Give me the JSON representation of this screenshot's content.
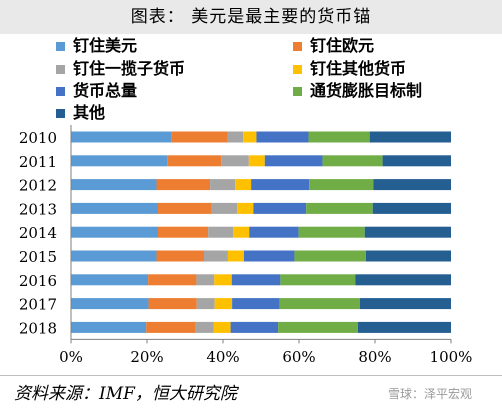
{
  "header": {
    "title": "图表：  美元是最主要的货币锚"
  },
  "footer": {
    "source": "资料来源：IMF，恒大研究院",
    "watermark": "雪球：泽平宏观"
  },
  "chart_data": {
    "type": "bar",
    "orientation": "horizontal",
    "stacked": "percent",
    "categories": [
      "2010",
      "2011",
      "2012",
      "2013",
      "2014",
      "2015",
      "2016",
      "2017",
      "2018"
    ],
    "series": [
      {
        "name": "钉住美元",
        "color": "#5b9bd5",
        "values": [
          26.5,
          25.3,
          22.5,
          22.9,
          22.9,
          22.5,
          20.3,
          20.4,
          19.8
        ]
      },
      {
        "name": "钉住欧元",
        "color": "#ed7d31",
        "values": [
          14.7,
          14.2,
          14.1,
          14.1,
          13.2,
          12.5,
          12.7,
          12.7,
          13.0
        ]
      },
      {
        "name": "钉住一揽子货币",
        "color": "#a5a5a5",
        "values": [
          4.1,
          7.3,
          6.6,
          6.7,
          6.6,
          6.3,
          4.7,
          4.7,
          4.7
        ]
      },
      {
        "name": "钉住其他货币",
        "color": "#ffc000",
        "values": [
          3.5,
          4.2,
          4.2,
          4.3,
          4.2,
          4.2,
          4.6,
          4.6,
          4.5
        ]
      },
      {
        "name": "货币总量",
        "color": "#4472c4",
        "values": [
          13.7,
          15.2,
          15.3,
          13.9,
          13.0,
          13.3,
          12.8,
          12.5,
          12.5
        ]
      },
      {
        "name": "通货膨胀目标制",
        "color": "#70ad47",
        "values": [
          16.1,
          15.8,
          16.9,
          17.5,
          17.4,
          18.8,
          19.7,
          21.1,
          21.0
        ]
      },
      {
        "name": "其他",
        "color": "#255e91",
        "values": [
          21.4,
          18.0,
          20.4,
          20.6,
          22.7,
          22.4,
          25.2,
          24.0,
          24.5
        ]
      }
    ],
    "xlim": [
      0,
      100
    ],
    "xticks": [
      "0%",
      "20%",
      "40%",
      "60%",
      "80%",
      "100%"
    ],
    "grid": false,
    "legend": "top"
  }
}
